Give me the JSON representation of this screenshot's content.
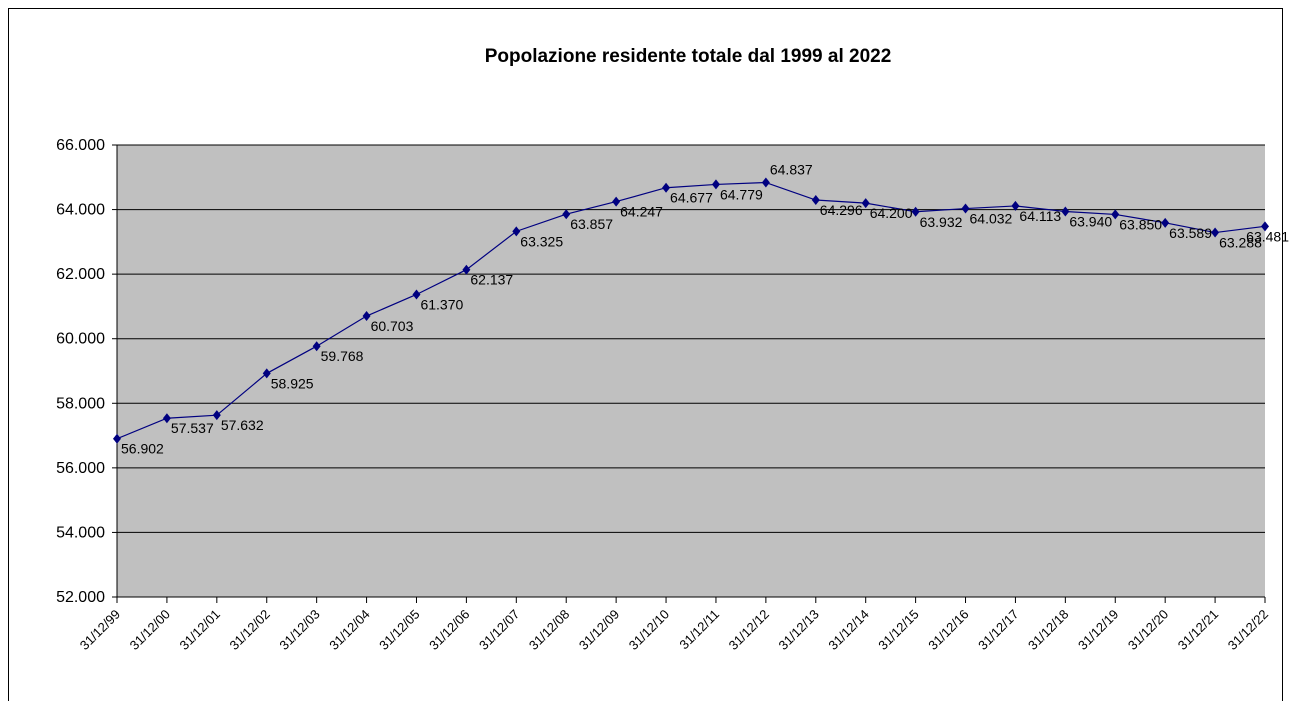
{
  "chart_data": {
    "type": "line",
    "title": "Popolazione residente totale dal 1999 al 2022",
    "categories": [
      "31/12/99",
      "31/12/00",
      "31/12/01",
      "31/12/02",
      "31/12/03",
      "31/12/04",
      "31/12/05",
      "31/12/06",
      "31/12/07",
      "31/12/08",
      "31/12/09",
      "31/12/10",
      "31/12/11",
      "31/12/12",
      "31/12/13",
      "31/12/14",
      "31/12/15",
      "31/12/16",
      "31/12/17",
      "31/12/18",
      "31/12/19",
      "31/12/20",
      "31/12/21",
      "31/12/22"
    ],
    "values": [
      56902,
      57537,
      57632,
      58925,
      59768,
      60703,
      61370,
      62137,
      63325,
      63857,
      64247,
      64677,
      64779,
      64837,
      64296,
      64200,
      63932,
      64032,
      64113,
      63940,
      63850,
      63589,
      63288,
      63481
    ],
    "value_labels": [
      "56.902",
      "57.537",
      "57.632",
      "58.925",
      "59.768",
      "60.703",
      "61.370",
      "62.137",
      "63.325",
      "63.857",
      "64.247",
      "64.677",
      "64.779",
      "64.837",
      "64.296",
      "64.200",
      "63.932",
      "64.032",
      "64.113",
      "63.940",
      "63.850",
      "63.589",
      "63.288",
      "63.481"
    ],
    "color": "#000080",
    "ylim": [
      52000,
      66000
    ],
    "yticks": [
      {
        "value": 52000,
        "label": "52.000"
      },
      {
        "value": 54000,
        "label": "54.000"
      },
      {
        "value": 56000,
        "label": "56.000"
      },
      {
        "value": 58000,
        "label": "58.000"
      },
      {
        "value": 60000,
        "label": "60.000"
      },
      {
        "value": 62000,
        "label": "62.000"
      },
      {
        "value": 64000,
        "label": "64.000"
      },
      {
        "value": 66000,
        "label": "66.000"
      }
    ],
    "grid": true
  }
}
